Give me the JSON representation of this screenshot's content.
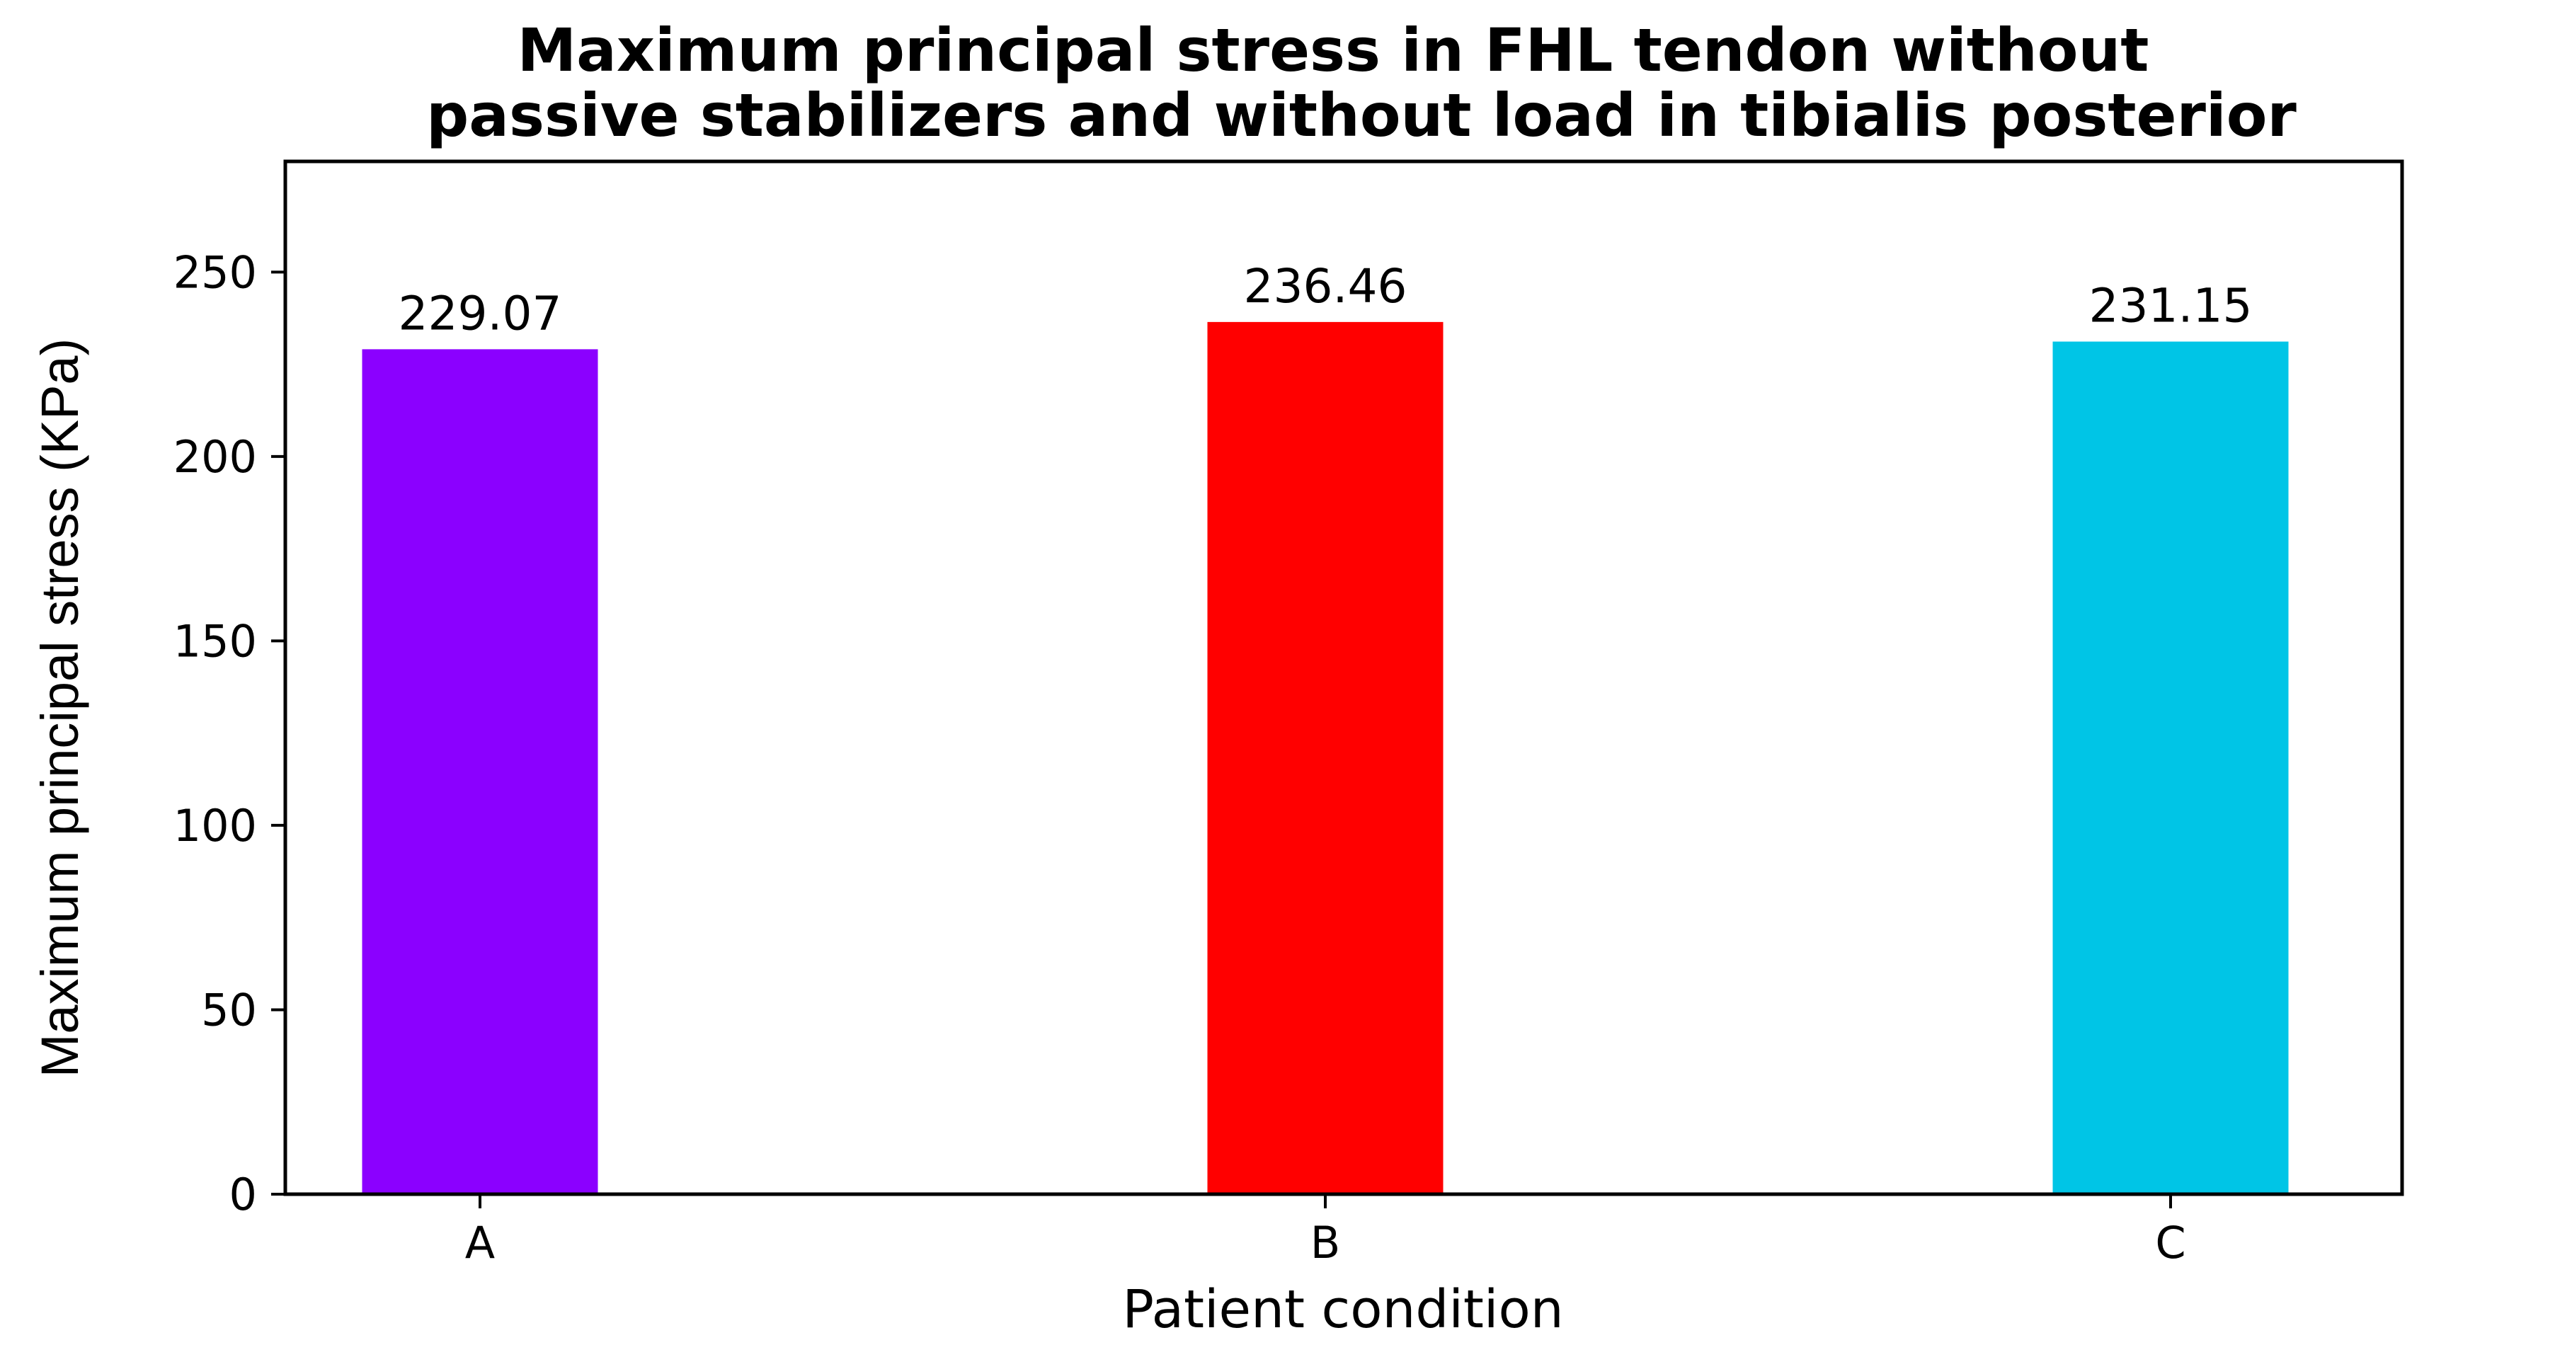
{
  "chart_data": {
    "type": "bar",
    "title_lines": [
      "Maximum principal stress in FHL tendon without",
      "passive stabilizers and without load in tibialis posterior"
    ],
    "xlabel": "Patient condition",
    "ylabel": "Maximum principal stress (KPa)",
    "categories": [
      "A",
      "B",
      "C"
    ],
    "values": [
      229.07,
      236.46,
      231.15
    ],
    "value_labels": [
      "229.07",
      "236.46",
      "231.15"
    ],
    "colors": [
      "#8b00ff",
      "#ff0000",
      "#00c5e6"
    ],
    "ylim": [
      0,
      280
    ],
    "yticks": [
      0,
      50,
      100,
      150,
      200,
      250
    ],
    "grid": false,
    "legend": "none"
  }
}
